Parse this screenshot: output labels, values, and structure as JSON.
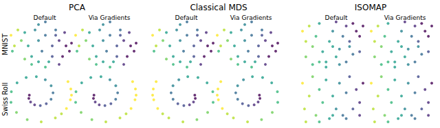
{
  "column_groups": [
    "PCA",
    "Classical MDS",
    "ISOMAP"
  ],
  "rows": [
    "MNIST",
    "Swiss Roll"
  ],
  "chart_data": [
    {
      "type": "scatter",
      "group": "PCA",
      "subtitle": "Default",
      "row": "MNIST",
      "color": "viridis",
      "tick_labels": false,
      "x": [
        1,
        1.5,
        2,
        2.5,
        1.2,
        3,
        3.5,
        4,
        4.5,
        5,
        5.5,
        6,
        6.5,
        7,
        7.5,
        8,
        8.5,
        9,
        9.5,
        8,
        7,
        6,
        5,
        4,
        3,
        5,
        6,
        7.5,
        8.8,
        9.8
      ],
      "y": [
        7,
        5,
        8,
        6,
        4,
        7.5,
        5,
        3,
        8,
        6,
        4,
        7,
        2,
        5,
        8,
        6,
        3,
        5,
        4,
        1.5,
        3,
        1,
        2,
        1.5,
        2.5,
        9,
        9.5,
        7,
        7.5,
        5.5
      ],
      "c": [
        0.95,
        0.9,
        0.85,
        0.8,
        0.7,
        0.6,
        0.5,
        0.55,
        0.45,
        0.4,
        0.3,
        0.35,
        0.6,
        0.2,
        0.3,
        0.1,
        0.05,
        0,
        0,
        0.15,
        0.25,
        0.65,
        0.5,
        0.7,
        0.75,
        0.4,
        0.35,
        0.2,
        0.1,
        0.05
      ]
    },
    {
      "type": "scatter",
      "group": "PCA",
      "subtitle": "Via Gradients",
      "row": "MNIST",
      "color": "viridis",
      "tick_labels": false,
      "x": [
        1,
        1.5,
        2,
        2.5,
        1.2,
        3,
        3.5,
        4,
        4.5,
        5,
        5.5,
        6,
        6.5,
        7,
        7.5,
        8,
        8.5,
        9,
        9.5,
        8,
        7,
        6,
        5,
        4,
        3,
        5,
        6,
        7.5,
        8.8,
        9.8
      ],
      "y": [
        7,
        5,
        8,
        6,
        4,
        7.5,
        5,
        3,
        8,
        6,
        4,
        7,
        2,
        5,
        8,
        6,
        3,
        5,
        4,
        1.5,
        3,
        1,
        2,
        1.5,
        2.5,
        9,
        9.5,
        7,
        7.5,
        5.5
      ],
      "c": [
        0.95,
        0.9,
        0.85,
        0.8,
        0.7,
        0.6,
        0.5,
        0.55,
        0.45,
        0.4,
        0.3,
        0.35,
        0.6,
        0.2,
        0.3,
        0.1,
        0.05,
        0,
        0,
        0.15,
        0.25,
        0.65,
        0.5,
        0.7,
        0.75,
        0.4,
        0.35,
        0.2,
        0.1,
        0.05
      ]
    },
    {
      "type": "scatter",
      "group": "Classical MDS",
      "subtitle": "Default",
      "row": "MNIST",
      "color": "viridis",
      "tick_labels": false,
      "x": [
        1,
        1.5,
        2,
        2.5,
        1.2,
        3,
        3.5,
        4,
        4.5,
        5,
        5.5,
        6,
        6.5,
        7,
        7.5,
        8,
        8.5,
        9,
        9.5,
        8,
        7,
        6,
        5,
        4,
        3,
        5,
        6,
        7.5,
        8.8,
        9.8
      ],
      "y": [
        7,
        5,
        8,
        6,
        4,
        7.5,
        5,
        3,
        8,
        6,
        4,
        7,
        2,
        5,
        8,
        6,
        3,
        5,
        4,
        1.5,
        3,
        1,
        2,
        1.5,
        2.5,
        9,
        9.5,
        7,
        7.5,
        5.5
      ],
      "c": [
        0.95,
        0.9,
        0.85,
        0.8,
        0.7,
        0.6,
        0.5,
        0.55,
        0.45,
        0.4,
        0.3,
        0.35,
        0.6,
        0.2,
        0.3,
        0.1,
        0.05,
        0,
        0,
        0.15,
        0.25,
        0.65,
        0.5,
        0.7,
        0.75,
        0.4,
        0.35,
        0.2,
        0.1,
        0.05
      ]
    },
    {
      "type": "scatter",
      "group": "Classical MDS",
      "subtitle": "Via Gradients",
      "row": "MNIST",
      "color": "viridis",
      "tick_labels": false,
      "x": [
        1,
        1.5,
        2,
        2.5,
        1.2,
        3,
        3.5,
        4,
        4.5,
        5,
        5.5,
        6,
        6.5,
        7,
        7.5,
        8,
        8.5,
        9,
        9.5,
        8,
        7,
        6,
        5,
        4,
        3,
        5,
        6,
        7.5,
        8.8,
        9.8
      ],
      "y": [
        7,
        5,
        8,
        6,
        4,
        7.5,
        5,
        3,
        8,
        6,
        4,
        7,
        2,
        5,
        8,
        6,
        3,
        5,
        4,
        1.5,
        3,
        1,
        2,
        1.5,
        2.5,
        9,
        9.5,
        7,
        7.5,
        5.5
      ],
      "c": [
        0.95,
        0.9,
        0.85,
        0.8,
        0.7,
        0.6,
        0.5,
        0.55,
        0.45,
        0.4,
        0.3,
        0.35,
        0.6,
        0.2,
        0.3,
        0.1,
        0.05,
        0,
        0,
        0.15,
        0.25,
        0.65,
        0.5,
        0.7,
        0.75,
        0.4,
        0.35,
        0.2,
        0.1,
        0.05
      ]
    },
    {
      "type": "scatter",
      "group": "ISOMAP",
      "subtitle": "Default",
      "row": "MNIST",
      "color": "viridis",
      "tick_labels": false,
      "x": [
        0.5,
        1,
        1.5,
        2,
        1,
        2.5,
        3,
        3.5,
        4,
        4.5,
        5,
        5.5,
        6,
        6.5,
        7,
        7.5,
        8,
        8.5,
        9,
        9.5,
        6,
        7,
        8,
        4,
        3,
        5,
        2,
        9,
        7.5,
        5.5
      ],
      "y": [
        8,
        6,
        9,
        5,
        3,
        7,
        9.5,
        4,
        2,
        6,
        8,
        3,
        1.5,
        7,
        9,
        5,
        9.5,
        8,
        7,
        9,
        4.5,
        2,
        3.5,
        1,
        2,
        5,
        1.5,
        4,
        6,
        9.8
      ],
      "c": [
        0.95,
        0.9,
        0.9,
        0.8,
        0.75,
        0.7,
        0.55,
        0.6,
        0.5,
        0.5,
        0.4,
        0.55,
        0.45,
        0.3,
        0.15,
        0.4,
        0.05,
        0.05,
        0,
        0,
        0.45,
        0.35,
        0.3,
        0.6,
        0.65,
        0.5,
        0.7,
        0.25,
        0.2,
        0.1
      ]
    },
    {
      "type": "scatter",
      "group": "ISOMAP",
      "subtitle": "Via Gradients",
      "row": "MNIST",
      "color": "viridis",
      "tick_labels": false,
      "x": [
        0.5,
        1,
        1.5,
        2,
        1,
        2.5,
        3,
        3.5,
        4,
        4.5,
        5,
        5.5,
        6,
        6.5,
        7,
        7.5,
        8,
        8.5,
        9,
        9.5,
        6,
        7,
        8,
        4,
        3,
        5,
        2,
        9,
        7.5,
        5.5
      ],
      "y": [
        8,
        6,
        9,
        5,
        3,
        7,
        9.5,
        4,
        2,
        6,
        8,
        3,
        1.5,
        7,
        9,
        5,
        9.5,
        8,
        7,
        9,
        4.5,
        2,
        3.5,
        1,
        2,
        5,
        1.5,
        4,
        6,
        9.8
      ],
      "c": [
        0.95,
        0.9,
        0.9,
        0.8,
        0.75,
        0.7,
        0.55,
        0.6,
        0.5,
        0.5,
        0.4,
        0.55,
        0.45,
        0.3,
        0.15,
        0.4,
        0.05,
        0.05,
        0,
        0,
        0.45,
        0.35,
        0.3,
        0.6,
        0.65,
        0.5,
        0.7,
        0.25,
        0.2,
        0.1
      ]
    },
    {
      "type": "scatter",
      "group": "PCA",
      "subtitle": "Default",
      "row": "Swiss Roll",
      "color": "viridis",
      "tick_labels": false,
      "x": [
        4,
        3.93,
        4.18,
        4.75,
        5.56,
        6.41,
        7.09,
        7.37,
        7.1,
        6.27,
        5,
        3.55,
        2.25,
        1.44,
        1.39,
        2.17,
        3.7,
        5.69,
        7.7,
        8.57,
        9.28,
        9.84,
        10,
        9.9,
        9.5
      ],
      "y": [
        5,
        4.46,
        3.87,
        3.42,
        3.29,
        3.59,
        4.32,
        5.37,
        6.53,
        7.49,
        8,
        7.85,
        7,
        5.56,
        3.83,
        2.17,
        1.01,
        0.65,
        1.28,
        1.95,
        2.82,
        4.24,
        5,
        6,
        7.2
      ],
      "c": [
        0,
        0.05,
        0.1,
        0.15,
        0.2,
        0.25,
        0.3,
        0.35,
        0.4,
        0.45,
        0.5,
        0.55,
        0.6,
        0.65,
        0.7,
        0.75,
        0.8,
        0.85,
        0.9,
        0.925,
        0.95,
        0.975,
        1,
        1,
        1
      ]
    },
    {
      "type": "scatter",
      "group": "PCA",
      "subtitle": "Via Gradients",
      "row": "Swiss Roll",
      "color": "viridis",
      "tick_labels": false,
      "x": [
        4,
        3.93,
        4.18,
        4.75,
        5.56,
        6.41,
        7.09,
        7.37,
        7.1,
        6.27,
        5,
        3.55,
        2.25,
        1.44,
        1.39,
        2.17,
        3.7,
        5.69,
        7.7,
        8.57,
        9.28,
        9.84,
        10,
        9.9,
        9.5
      ],
      "y": [
        5,
        4.46,
        3.87,
        3.42,
        3.29,
        3.59,
        4.32,
        5.37,
        6.53,
        7.49,
        8,
        7.85,
        7,
        5.56,
        3.83,
        2.17,
        1.01,
        0.65,
        1.28,
        1.95,
        2.82,
        4.24,
        5,
        6,
        7.2
      ],
      "c": [
        0,
        0.05,
        0.1,
        0.15,
        0.2,
        0.25,
        0.3,
        0.35,
        0.4,
        0.45,
        0.5,
        0.55,
        0.6,
        0.65,
        0.7,
        0.75,
        0.8,
        0.85,
        0.9,
        0.925,
        0.95,
        0.975,
        1,
        1,
        1
      ]
    },
    {
      "type": "scatter",
      "group": "Classical MDS",
      "subtitle": "Default",
      "row": "Swiss Roll",
      "color": "viridis",
      "tick_labels": false,
      "x": [
        6,
        6.07,
        5.82,
        5.25,
        4.44,
        3.59,
        2.91,
        2.63,
        2.9,
        3.73,
        5,
        6.45,
        7.75,
        8.56,
        8.61,
        7.83,
        6.3,
        4.31,
        2.3,
        1.43,
        0.72,
        0.16,
        0,
        0.1,
        0.5
      ],
      "y": [
        5,
        4.46,
        3.87,
        3.42,
        3.29,
        3.59,
        4.32,
        5.37,
        6.53,
        7.49,
        8,
        7.85,
        7,
        5.56,
        3.83,
        2.17,
        1.01,
        0.65,
        1.28,
        1.95,
        2.82,
        4.24,
        5,
        6,
        7.2
      ],
      "c": [
        0,
        0.05,
        0.1,
        0.15,
        0.2,
        0.25,
        0.3,
        0.35,
        0.4,
        0.45,
        0.5,
        0.55,
        0.6,
        0.65,
        0.7,
        0.75,
        0.8,
        0.85,
        0.9,
        0.925,
        0.95,
        0.975,
        1,
        1,
        1
      ]
    },
    {
      "type": "scatter",
      "group": "Classical MDS",
      "subtitle": "Via Gradients",
      "row": "Swiss Roll",
      "color": "viridis",
      "tick_labels": false,
      "x": [
        6,
        6.07,
        5.82,
        5.25,
        4.44,
        3.59,
        2.91,
        2.63,
        2.9,
        3.73,
        5,
        6.45,
        7.75,
        8.56,
        8.61,
        7.83,
        6.3,
        4.31,
        2.3,
        1.43,
        0.72,
        0.16,
        0,
        0.1,
        0.5
      ],
      "y": [
        5,
        4.46,
        3.87,
        3.42,
        3.29,
        3.59,
        4.32,
        5.37,
        6.53,
        7.49,
        8,
        7.85,
        7,
        5.56,
        3.83,
        2.17,
        1.01,
        0.65,
        1.28,
        1.95,
        2.82,
        4.24,
        5,
        6,
        7.2
      ],
      "c": [
        0,
        0.05,
        0.1,
        0.15,
        0.2,
        0.25,
        0.3,
        0.35,
        0.4,
        0.45,
        0.5,
        0.55,
        0.6,
        0.65,
        0.7,
        0.75,
        0.8,
        0.85,
        0.9,
        0.925,
        0.95,
        0.975,
        1,
        1,
        1
      ]
    },
    {
      "type": "scatter",
      "group": "ISOMAP",
      "subtitle": "Default",
      "row": "Swiss Roll",
      "color": "viridis",
      "tick_labels": false,
      "x": [
        0.5,
        0.8,
        1.5,
        2,
        2.5,
        3,
        3.5,
        4,
        4.5,
        5,
        5.5,
        6,
        6.5,
        7,
        7.5,
        8,
        8.5,
        9,
        9.5,
        1,
        3,
        5,
        7,
        9
      ],
      "y": [
        8,
        4,
        6,
        9,
        3,
        7,
        5,
        8.5,
        2.5,
        6,
        4,
        8,
        3,
        6.5,
        9,
        4,
        7,
        5,
        8,
        2,
        2,
        3,
        2.5,
        3
      ],
      "c": [
        0.95,
        0.92,
        0.85,
        0.8,
        0.75,
        0.7,
        0.65,
        0.6,
        0.55,
        0.5,
        0.45,
        0.4,
        0.35,
        0.3,
        0.25,
        0.2,
        0.15,
        0.1,
        0.05,
        0.9,
        0.7,
        0.5,
        0.3,
        0.1
      ]
    },
    {
      "type": "scatter",
      "group": "ISOMAP",
      "subtitle": "Via Gradients",
      "row": "Swiss Roll",
      "color": "viridis",
      "tick_labels": false,
      "x": [
        0.5,
        0.8,
        1.5,
        2,
        2.5,
        3,
        3.5,
        4,
        4.5,
        5,
        5.5,
        6,
        6.5,
        7,
        7.5,
        8,
        8.5,
        9,
        9.5,
        1,
        3,
        5,
        7,
        9
      ],
      "y": [
        8,
        4,
        6,
        9,
        3,
        7,
        5,
        8.5,
        2.5,
        6,
        4,
        8,
        3,
        6.5,
        9,
        4,
        7,
        5,
        8,
        2,
        2,
        3,
        2.5,
        3
      ],
      "c": [
        0.95,
        0.92,
        0.85,
        0.8,
        0.75,
        0.7,
        0.65,
        0.6,
        0.55,
        0.5,
        0.45,
        0.4,
        0.35,
        0.3,
        0.25,
        0.2,
        0.15,
        0.1,
        0.05,
        0.9,
        0.7,
        0.5,
        0.3,
        0.1
      ]
    }
  ]
}
